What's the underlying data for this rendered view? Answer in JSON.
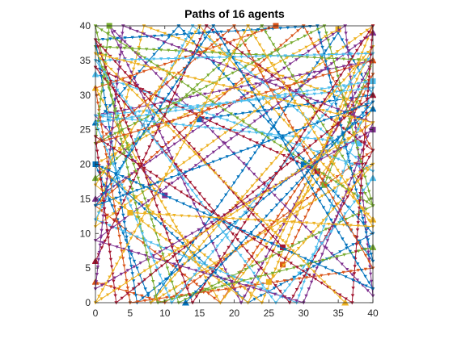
{
  "chart_data": {
    "type": "line",
    "title": "Paths of 16 agents",
    "xlabel": "",
    "ylabel": "",
    "xlim": [
      0,
      40
    ],
    "ylim": [
      0,
      40
    ],
    "xticks": [
      0,
      5,
      10,
      15,
      20,
      25,
      30,
      35,
      40
    ],
    "yticks": [
      0,
      5,
      10,
      15,
      20,
      25,
      30,
      35,
      40
    ],
    "xtick_labels": [
      "0",
      "5",
      "10",
      "15",
      "20",
      "25",
      "30",
      "35",
      "40"
    ],
    "ytick_labels": [
      "0",
      "5",
      "10",
      "15",
      "20",
      "25",
      "30",
      "35",
      "40"
    ],
    "grid": false,
    "box": true,
    "colors": [
      "#0072BD",
      "#D95319",
      "#EDB120",
      "#7E2F8E",
      "#77AC30",
      "#4DBEEE",
      "#A2142F"
    ],
    "marker_note": "triangle markers along each path, square marker at each agent's current position",
    "series": [
      {
        "color": "#0072BD",
        "x": [
          0,
          12,
          40,
          22,
          0,
          8,
          35,
          40,
          15
        ],
        "y": [
          26,
          40,
          10,
          0,
          20,
          0,
          39,
          30,
          26.5
        ],
        "end": [
          15,
          26.5
        ]
      },
      {
        "color": "#D95319",
        "x": [
          0,
          10,
          40,
          30,
          0,
          18,
          40,
          27
        ],
        "y": [
          3,
          0,
          22,
          40,
          14,
          0,
          33,
          5.5
        ],
        "end": [
          27,
          5.5
        ]
      },
      {
        "color": "#EDB120",
        "x": [
          0,
          18,
          40,
          7,
          0,
          40,
          24,
          0,
          35
        ],
        "y": [
          31,
          0,
          28,
          40,
          11,
          40,
          0,
          20,
          39.5
        ],
        "end": [
          35,
          39.5
        ]
      },
      {
        "color": "#7E2F8E",
        "x": [
          0,
          36,
          40,
          2,
          21,
          40,
          0,
          10
        ],
        "y": [
          15,
          40,
          1,
          40,
          0,
          35,
          27,
          15.5
        ],
        "end": [
          10,
          15.5
        ]
      },
      {
        "color": "#77AC30",
        "x": [
          0,
          24,
          40,
          12,
          0,
          40,
          33
        ],
        "y": [
          18,
          40,
          14,
          0,
          37,
          35,
          17
        ],
        "end": [
          33,
          17
        ]
      },
      {
        "color": "#4DBEEE",
        "x": [
          0,
          40,
          14,
          0,
          29,
          40,
          0,
          38
        ],
        "y": [
          33,
          19,
          40,
          12,
          0,
          31,
          27,
          23
        ],
        "end": [
          38,
          23
        ]
      },
      {
        "color": "#A2142F",
        "x": [
          0,
          16,
          40,
          28,
          0,
          32
        ],
        "y": [
          6,
          40,
          22,
          0,
          34,
          19
        ],
        "end": [
          32,
          19
        ]
      },
      {
        "color": "#0072BD",
        "x": [
          40,
          6,
          0,
          32,
          40,
          30
        ],
        "y": [
          28,
          0,
          38,
          40,
          6,
          20
        ],
        "end": [
          30,
          20
        ]
      },
      {
        "color": "#D95319",
        "x": [
          40,
          0,
          20,
          40,
          5,
          0,
          26
        ],
        "y": [
          35,
          23,
          40,
          5,
          0,
          31,
          40
        ],
        "end": [
          26,
          40
        ]
      },
      {
        "color": "#EDB120",
        "x": [
          40,
          15,
          0,
          22,
          40,
          8,
          40,
          25
        ],
        "y": [
          12,
          40,
          17,
          0,
          37,
          0,
          20,
          3
        ],
        "end": [
          25,
          3
        ]
      },
      {
        "color": "#7E2F8E",
        "x": [
          40,
          0,
          30,
          40,
          4,
          0,
          40
        ],
        "y": [
          39,
          9,
          0,
          26,
          40,
          2,
          25
        ],
        "end": [
          40,
          25
        ]
      },
      {
        "color": "#77AC30",
        "x": [
          40,
          9,
          0,
          40,
          33,
          0,
          2
        ],
        "y": [
          8,
          0,
          40,
          14,
          40,
          23,
          40
        ],
        "end": [
          2,
          40
        ]
      },
      {
        "color": "#4DBEEE",
        "x": [
          40,
          26,
          0,
          40,
          11,
          0,
          40
        ],
        "y": [
          18,
          0,
          35,
          36,
          0,
          26,
          32
        ],
        "end": [
          40,
          32
        ]
      },
      {
        "color": "#A2142F",
        "x": [
          40,
          3,
          0,
          37,
          40,
          14,
          0,
          27
        ],
        "y": [
          30,
          0,
          24,
          0,
          40,
          0,
          38,
          8
        ],
        "end": [
          27,
          8
        ]
      },
      {
        "color": "#0072BD",
        "x": [
          13,
          40,
          0,
          17,
          40,
          0
        ],
        "y": [
          0,
          29,
          14,
          40,
          2,
          20
        ],
        "end": [
          0,
          20
        ]
      },
      {
        "color": "#EDB120",
        "x": [
          36,
          0,
          40,
          0,
          22,
          40,
          5
        ],
        "y": [
          0,
          36,
          26,
          0,
          40,
          11,
          13
        ],
        "end": [
          5,
          13
        ]
      }
    ]
  }
}
